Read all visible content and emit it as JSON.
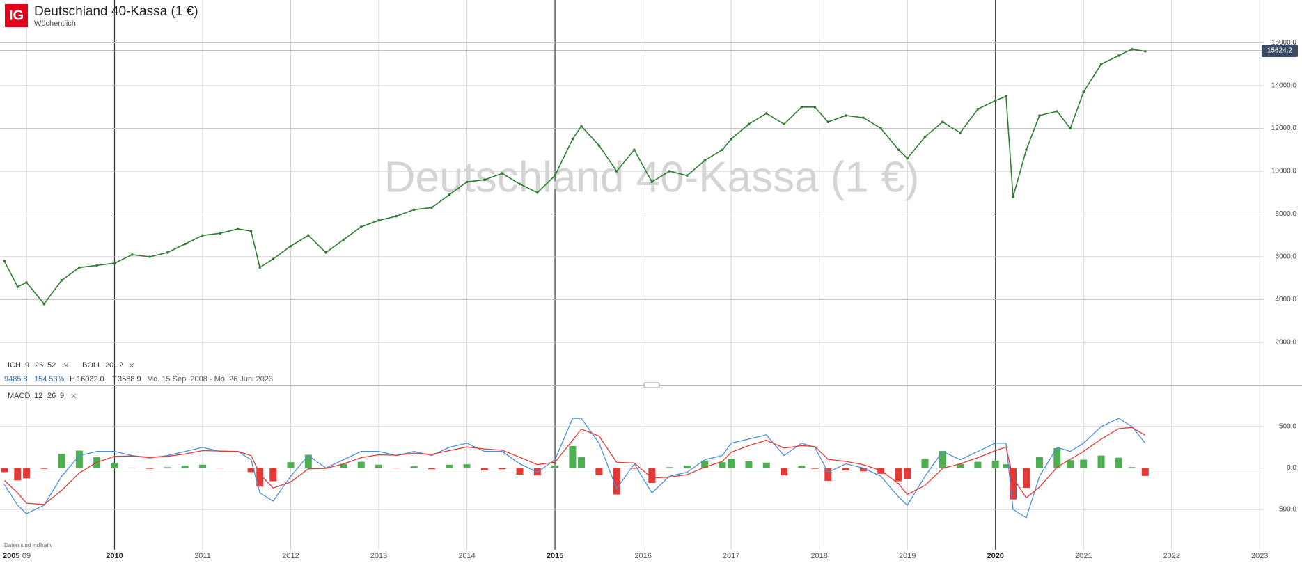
{
  "header": {
    "title": "Deutschland 40-Kassa (1 €)",
    "subtitle": "Wöchentlich",
    "logo": "IG"
  },
  "indicators": {
    "ichi": {
      "name": "ICHI",
      "params": [
        9,
        26,
        52
      ]
    },
    "boll": {
      "name": "BOLL",
      "params": [
        20,
        2
      ]
    },
    "macd": {
      "name": "MACD",
      "params": [
        12,
        26,
        9
      ]
    },
    "info": {
      "value": 9485.8,
      "change": {
        "value": 154.53,
        "label": "154.53%"
      },
      "high_label": "H",
      "high": {
        "value": 16032,
        "label": "16032.0"
      },
      "low_label": "T",
      "low": 3588.9,
      "range": "Mo. 15 Sep. 2008 - Mo. 26 Juni 2023"
    }
  },
  "footer_note": "Daten sind indikativ",
  "chart_data": [
    {
      "type": "line",
      "title": "Deutschland 40-Kassa (1 €)",
      "color": "#2e7d32",
      "x": [
        2008.75,
        2008.9,
        2009.0,
        2009.2,
        2009.4,
        2009.6,
        2009.8,
        2010.0,
        2010.2,
        2010.4,
        2010.6,
        2010.8,
        2011.0,
        2011.2,
        2011.4,
        2011.55,
        2011.65,
        2011.8,
        2012.0,
        2012.2,
        2012.4,
        2012.6,
        2012.8,
        2013.0,
        2013.2,
        2013.4,
        2013.6,
        2013.8,
        2014.0,
        2014.2,
        2014.4,
        2014.6,
        2014.8,
        2015.0,
        2015.2,
        2015.3,
        2015.5,
        2015.7,
        2015.9,
        2016.1,
        2016.3,
        2016.5,
        2016.7,
        2016.9,
        2017.0,
        2017.2,
        2017.4,
        2017.6,
        2017.8,
        2017.95,
        2018.1,
        2018.3,
        2018.5,
        2018.7,
        2018.9,
        2019.0,
        2019.2,
        2019.4,
        2019.6,
        2019.8,
        2020.0,
        2020.12,
        2020.2,
        2020.35,
        2020.5,
        2020.7,
        2020.85,
        2021.0,
        2021.2,
        2021.4,
        2021.55,
        2021.7
      ],
      "values": [
        5800,
        4600,
        4800,
        3800,
        4900,
        5500,
        5600,
        5700,
        6100,
        6000,
        6200,
        6600,
        7000,
        7100,
        7300,
        7200,
        5500,
        5900,
        6500,
        7000,
        6200,
        6800,
        7400,
        7700,
        7900,
        8200,
        8300,
        8900,
        9500,
        9600,
        9900,
        9400,
        9000,
        9800,
        11500,
        12100,
        11200,
        10000,
        11000,
        9500,
        10000,
        9800,
        10500,
        11000,
        11500,
        12200,
        12700,
        12200,
        13000,
        13000,
        12300,
        12600,
        12500,
        12000,
        11000,
        10600,
        11600,
        12300,
        11800,
        12900,
        13300,
        13500,
        8800,
        11000,
        12600,
        12800,
        12000,
        13700,
        15000,
        15400,
        15700,
        15600
      ],
      "last_price": 15624.2,
      "xlim": [
        2008.7,
        2023.48
      ],
      "x_start_label": "2005",
      "xticks": [
        {
          "value": 2009,
          "label": "09"
        },
        2010,
        2011,
        2012,
        2013,
        2014,
        2015,
        2016,
        2017,
        2018,
        2019,
        2020,
        2021,
        2022,
        2023
      ],
      "major_xticks": [
        2010,
        2015,
        2020
      ],
      "ylim": [
        0,
        18000
      ],
      "yticks": [
        {
          "value": 2000,
          "label": "2000.0"
        },
        {
          "value": 4000,
          "label": "4000.0"
        },
        {
          "value": 6000,
          "label": "6000.0"
        },
        {
          "value": 8000,
          "label": "8000.0"
        },
        {
          "value": 10000,
          "label": "10000.0"
        },
        {
          "value": 12000,
          "label": "12000.0"
        },
        {
          "value": 14000,
          "label": "14000.0"
        },
        {
          "value": 16000,
          "label": "16000.0"
        }
      ],
      "grid": true
    },
    {
      "type": "macd",
      "x": [
        2008.75,
        2008.9,
        2009.0,
        2009.2,
        2009.4,
        2009.6,
        2009.8,
        2010.0,
        2010.2,
        2010.4,
        2010.6,
        2010.8,
        2011.0,
        2011.2,
        2011.4,
        2011.55,
        2011.65,
        2011.8,
        2012.0,
        2012.2,
        2012.4,
        2012.6,
        2012.8,
        2013.0,
        2013.2,
        2013.4,
        2013.6,
        2013.8,
        2014.0,
        2014.2,
        2014.4,
        2014.6,
        2014.8,
        2015.0,
        2015.2,
        2015.3,
        2015.5,
        2015.7,
        2015.9,
        2016.1,
        2016.3,
        2016.5,
        2016.7,
        2016.9,
        2017.0,
        2017.2,
        2017.4,
        2017.6,
        2017.8,
        2017.95,
        2018.1,
        2018.3,
        2018.5,
        2018.7,
        2018.9,
        2019.0,
        2019.2,
        2019.4,
        2019.6,
        2019.8,
        2020.0,
        2020.12,
        2020.2,
        2020.35,
        2020.5,
        2020.7,
        2020.85,
        2021.0,
        2021.2,
        2021.4,
        2021.55,
        2021.7
      ],
      "series": [
        {
          "type": "bar",
          "color": "#4caf50",
          "negative_color": "#e53935",
          "values": [
            -50,
            -150,
            -125,
            -10,
            170,
            210,
            130,
            60,
            5,
            -10,
            10,
            30,
            40,
            -5,
            0,
            -50,
            -225,
            -160,
            70,
            160,
            5,
            50,
            75,
            40,
            -5,
            20,
            -15,
            40,
            45,
            -30,
            -15,
            -80,
            -90,
            30,
            265,
            130,
            -85,
            -320,
            -10,
            -180,
            10,
            30,
            90,
            70,
            110,
            80,
            65,
            -90,
            30,
            -10,
            -155,
            -30,
            -40,
            -70,
            -160,
            -130,
            110,
            205,
            50,
            75,
            90,
            45,
            -380,
            -240,
            130,
            240,
            95,
            100,
            150,
            125,
            10,
            -95
          ]
        },
        {
          "type": "line",
          "color": "#4a90d9",
          "values": [
            -200,
            -450,
            -550,
            -450,
            -100,
            150,
            200,
            200,
            150,
            120,
            150,
            200,
            250,
            200,
            200,
            100,
            -300,
            -400,
            -100,
            150,
            0,
            100,
            200,
            200,
            150,
            200,
            150,
            250,
            300,
            200,
            200,
            50,
            -50,
            100,
            600,
            600,
            300,
            -250,
            50,
            -300,
            -100,
            -50,
            100,
            150,
            300,
            350,
            400,
            150,
            300,
            250,
            -50,
            50,
            0,
            -100,
            -350,
            -450,
            -100,
            200,
            100,
            200,
            300,
            300,
            -500,
            -600,
            -100,
            250,
            200,
            300,
            500,
            600,
            500,
            300
          ]
        },
        {
          "type": "line",
          "color": "#e53935",
          "values": [
            -150,
            -300,
            -425,
            -440,
            -270,
            -60,
            70,
            140,
            145,
            130,
            140,
            170,
            210,
            205,
            200,
            150,
            -75,
            -240,
            -170,
            -10,
            -5,
            50,
            125,
            160,
            155,
            180,
            165,
            210,
            255,
            230,
            215,
            130,
            40,
            70,
            335,
            470,
            385,
            70,
            60,
            -120,
            -110,
            -80,
            10,
            80,
            190,
            270,
            335,
            240,
            270,
            260,
            105,
            80,
            40,
            -30,
            -190,
            -320,
            -210,
            -5,
            50,
            125,
            210,
            255,
            -120,
            -360,
            -230,
            10,
            105,
            200,
            350,
            475,
            490,
            395
          ]
        }
      ],
      "ylim": [
        -1000,
        1000
      ],
      "yticks": [
        {
          "value": 500,
          "label": "500.0"
        },
        {
          "value": 0,
          "label": "0.0"
        },
        {
          "value": -500,
          "label": "-500.0"
        }
      ]
    }
  ]
}
